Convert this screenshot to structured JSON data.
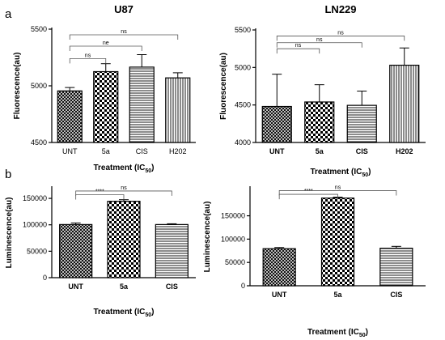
{
  "panel_labels": {
    "a": "a",
    "b": "b"
  },
  "chart_data": [
    {
      "id": "a-u87",
      "type": "bar",
      "title": "U87",
      "xlabel": "Treatment (IC",
      "xlabel_sub": "50",
      "xlabel_end": ")",
      "ylabel": "Fluorescence(au)",
      "categories": [
        "UNT",
        "5a",
        "CIS",
        "H202"
      ],
      "values": [
        4955,
        5125,
        5165,
        5070
      ],
      "errors": [
        30,
        70,
        110,
        45
      ],
      "patterns": [
        "crosshatch",
        "checker",
        "hlines",
        "vlines"
      ],
      "ylim": [
        4500,
        5500
      ],
      "yticks": [
        4500,
        5000,
        5500
      ],
      "bold_categories": false,
      "comparisons": [
        {
          "from": 0,
          "to": 1,
          "label": "ns",
          "y": 5240
        },
        {
          "from": 0,
          "to": 2,
          "label": "ne",
          "y": 5350
        },
        {
          "from": 0,
          "to": 3,
          "label": "ns",
          "y": 5450
        }
      ]
    },
    {
      "id": "a-ln229",
      "type": "bar",
      "title": "LN229",
      "xlabel": "Treatment (IC",
      "xlabel_sub": "50",
      "xlabel_end": ")",
      "ylabel": "Fluorescence(au)",
      "categories": [
        "UNT",
        "5a",
        "CIS",
        "H202"
      ],
      "values": [
        4480,
        4540,
        4495,
        5030
      ],
      "errors": [
        430,
        230,
        190,
        230
      ],
      "patterns": [
        "crosshatch",
        "checker",
        "hlines",
        "vlines"
      ],
      "ylim": [
        4000,
        5500
      ],
      "yticks": [
        4000,
        4500,
        5000,
        5500
      ],
      "bold_categories": true,
      "comparisons": [
        {
          "from": 0,
          "to": 1,
          "label": "ns",
          "y": 5250
        },
        {
          "from": 0,
          "to": 2,
          "label": "ns",
          "y": 5330
        },
        {
          "from": 0,
          "to": 3,
          "label": "ns",
          "y": 5420
        }
      ]
    },
    {
      "id": "b-left",
      "type": "bar",
      "title": "",
      "xlabel": "Treatment (IC",
      "xlabel_sub": "50",
      "xlabel_end": ")",
      "ylabel": "Luminescence(au)",
      "categories": [
        "UNT",
        "5a",
        "CIS"
      ],
      "values": [
        100500,
        144500,
        100500
      ],
      "errors": [
        3000,
        3000,
        1500
      ],
      "patterns": [
        "crosshatch",
        "checker",
        "hlines"
      ],
      "ylim": [
        0,
        170000
      ],
      "yticks": [
        0,
        50000,
        100000,
        150000
      ],
      "bold_categories": true,
      "comparisons": [
        {
          "from": 0,
          "to": 1,
          "label": "****",
          "y": 157000
        },
        {
          "from": 0,
          "to": 2,
          "label": "ns",
          "y": 164000
        }
      ]
    },
    {
      "id": "b-right",
      "type": "bar",
      "title": "",
      "xlabel": "Treatment (IC",
      "xlabel_sub": "50",
      "xlabel_end": ")",
      "ylabel": "Luminescence(au)",
      "categories": [
        "UNT",
        "5a",
        "CIS"
      ],
      "values": [
        79500,
        188000,
        80500
      ],
      "errors": [
        2500,
        2000,
        4000
      ],
      "patterns": [
        "crosshatch",
        "checker",
        "hlines"
      ],
      "ylim": [
        0,
        210000
      ],
      "yticks": [
        0,
        50000,
        100000,
        150000
      ],
      "bold_categories": true,
      "comparisons": [
        {
          "from": 0,
          "to": 1,
          "label": "****",
          "y": 196000
        },
        {
          "from": 0,
          "to": 2,
          "label": "ns",
          "y": 204000
        }
      ]
    }
  ]
}
